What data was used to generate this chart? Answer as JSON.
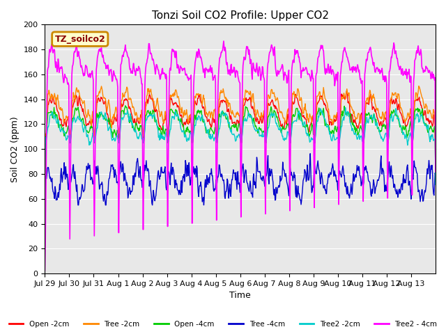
{
  "title": "Tonzi Soil CO2 Profile: Upper CO2",
  "ylabel": "Soil CO2 (ppm)",
  "xlabel": "Time",
  "ylim": [
    0,
    200
  ],
  "legend_label": "TZ_soilco2",
  "series_labels": [
    "Open -2cm",
    "Tree -2cm",
    "Open -4cm",
    "Tree -4cm",
    "Tree2 -2cm",
    "Tree2 - 4cm"
  ],
  "series_colors": [
    "#ff0000",
    "#ff8800",
    "#00cc00",
    "#0000cc",
    "#00cccc",
    "#ff00ff"
  ],
  "x_tick_labels": [
    "Jul 29",
    "Jul 30",
    "Jul 31",
    "Aug 1",
    "Aug 2",
    "Aug 3",
    "Aug 4",
    "Aug 5",
    "Aug 6",
    "Aug 7",
    "Aug 8",
    "Aug 9",
    "Aug 10",
    "Aug 11",
    "Aug 12",
    "Aug 13"
  ],
  "background_color": "#e8e8e8",
  "title_fontsize": 11,
  "label_fontsize": 9,
  "tick_fontsize": 8
}
